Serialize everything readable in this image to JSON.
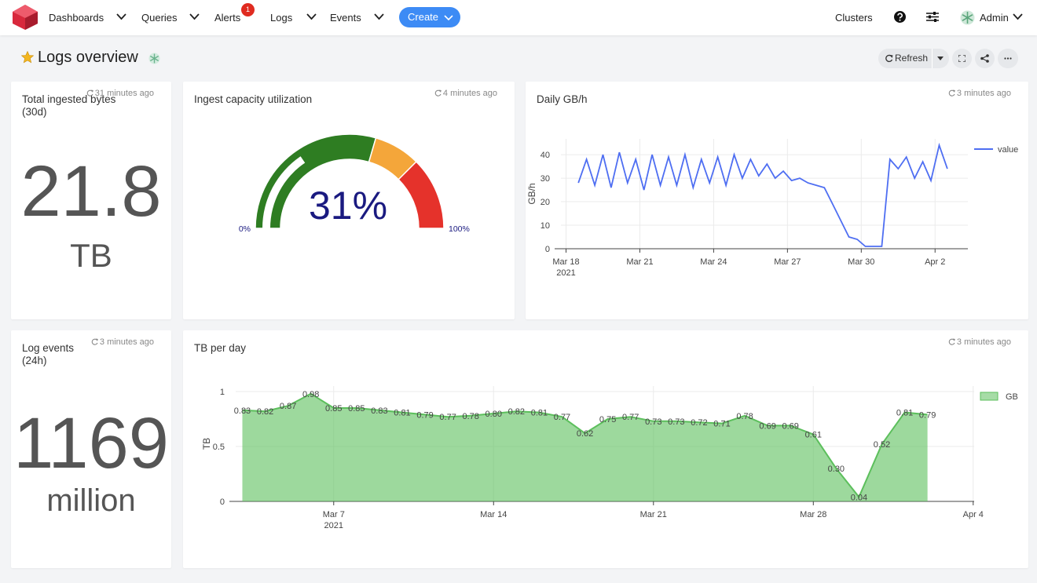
{
  "nav": {
    "items": [
      {
        "label": "Dashboards"
      },
      {
        "label": "Queries"
      },
      {
        "label": "Alerts",
        "badge": "1"
      },
      {
        "label": "Logs"
      },
      {
        "label": "Events"
      }
    ],
    "create": "Create",
    "clusters": "Clusters",
    "user": "Admin"
  },
  "header": {
    "title": "Logs overview",
    "refresh": "Refresh"
  },
  "stats": [
    {
      "title": "Total ingested bytes (30d)",
      "updated": "31 minutes ago",
      "value": "21.8",
      "unit": "TB"
    },
    {
      "title": "Log events (24h)",
      "updated": "3 minutes ago",
      "value": "1169",
      "unit": "million"
    }
  ],
  "chart_data": [
    {
      "type": "gauge",
      "title": "Ingest capacity utilization",
      "updated": "4 minutes ago",
      "values": [
        31
      ],
      "value_labels": [
        "31%"
      ],
      "color": "#2e7d22",
      "ylim": [
        0,
        100
      ],
      "yticks": [
        {
          "value": 0,
          "label": "0%"
        },
        {
          "value": 100,
          "label": "100%"
        }
      ],
      "bands": [
        {
          "to": 59,
          "color": "#2e7d22"
        },
        {
          "to": 75,
          "color": "#f4a63a"
        },
        {
          "to": 100,
          "color": "#e5322b"
        }
      ]
    },
    {
      "type": "line",
      "title": "Daily GB/h",
      "updated": "3 minutes ago",
      "y_label": "GB/h",
      "x": [
        "2021-03-18T12:00",
        "2021-03-18T20:00",
        "2021-03-19T04:00",
        "2021-03-19T12:00",
        "2021-03-19T20:00",
        "2021-03-20T04:00",
        "2021-03-20T12:00",
        "2021-03-20T20:00",
        "2021-03-21T04:00",
        "2021-03-21T12:00",
        "2021-03-21T20:00",
        "2021-03-22T04:00",
        "2021-03-22T12:00",
        "2021-03-22T20:00",
        "2021-03-23T04:00",
        "2021-03-23T12:00",
        "2021-03-23T20:00",
        "2021-03-24T04:00",
        "2021-03-24T12:00",
        "2021-03-24T20:00",
        "2021-03-25T04:00",
        "2021-03-25T12:00",
        "2021-03-25T20:00",
        "2021-03-26T04:00",
        "2021-03-26T12:00",
        "2021-03-26T20:00",
        "2021-03-27T04:00",
        "2021-03-27T12:00",
        "2021-03-27T20:00",
        "2021-03-28T04:00",
        "2021-03-28T12:00",
        "2021-03-28T20:00",
        "2021-03-29T04:00",
        "2021-03-29T12:00",
        "2021-03-29T20:00",
        "2021-03-30T04:00",
        "2021-03-30T12:00",
        "2021-03-30T20:00",
        "2021-03-31T04:00",
        "2021-03-31T12:00",
        "2021-03-31T20:00",
        "2021-04-01T04:00",
        "2021-04-01T12:00",
        "2021-04-01T20:00",
        "2021-04-02T04:00",
        "2021-04-02T12:00"
      ],
      "series": [
        {
          "name": "value",
          "color": "#4e6ef2",
          "values": [
            28,
            38,
            27,
            40,
            26,
            41,
            28,
            38,
            25,
            40,
            27,
            39,
            27,
            40,
            26,
            38,
            28,
            39,
            27,
            40,
            30,
            38,
            31,
            36,
            30,
            33,
            29,
            30,
            28,
            27,
            26,
            19,
            12,
            5,
            4,
            1,
            1,
            1,
            38,
            34,
            39,
            30,
            37,
            29,
            44,
            34
          ]
        }
      ],
      "xlim": [
        "2021-03-17T19:00",
        "2021-04-03T08:00"
      ],
      "xticks": [
        {
          "value": "2021-03-18",
          "label": "Mar 18\n2021"
        },
        {
          "value": "2021-03-21",
          "label": "Mar 21"
        },
        {
          "value": "2021-03-24",
          "label": "Mar 24"
        },
        {
          "value": "2021-03-27",
          "label": "Mar 27"
        },
        {
          "value": "2021-03-30",
          "label": "Mar 30"
        },
        {
          "value": "2021-04-02",
          "label": "Apr 2"
        }
      ],
      "ylim": [
        0,
        46.7
      ],
      "yticks": [
        0,
        10,
        20,
        30,
        40
      ],
      "grid": true,
      "legend": "right"
    },
    {
      "type": "area",
      "title": "TB per day",
      "updated": "3 minutes ago",
      "y_label": "TB",
      "x": [
        "2021-03-03",
        "2021-03-04",
        "2021-03-05",
        "2021-03-06",
        "2021-03-07",
        "2021-03-08",
        "2021-03-09",
        "2021-03-10",
        "2021-03-11",
        "2021-03-12",
        "2021-03-13",
        "2021-03-14",
        "2021-03-15",
        "2021-03-16",
        "2021-03-17",
        "2021-03-18",
        "2021-03-19",
        "2021-03-20",
        "2021-03-21",
        "2021-03-22",
        "2021-03-23",
        "2021-03-24",
        "2021-03-25",
        "2021-03-26",
        "2021-03-27",
        "2021-03-28",
        "2021-03-29",
        "2021-03-30",
        "2021-03-31",
        "2021-04-01",
        "2021-04-02"
      ],
      "series": [
        {
          "name": "GB",
          "color": "#5cbf5c",
          "values": [
            0.83,
            0.82,
            0.87,
            0.98,
            0.85,
            0.85,
            0.83,
            0.81,
            0.79,
            0.77,
            0.78,
            0.8,
            0.82,
            0.81,
            0.77,
            0.62,
            0.75,
            0.77,
            0.73,
            0.73,
            0.72,
            0.71,
            0.78,
            0.69,
            0.69,
            0.61,
            0.3,
            0.04,
            0.52,
            0.81,
            0.79
          ],
          "value_labels": [
            "0.83",
            "0.82",
            "0.87",
            "0.98",
            "0.85",
            "0.85",
            "0.83",
            "0.81",
            "0.79",
            "0.77",
            "0.78",
            "0.80",
            "0.82",
            "0.81",
            "0.77",
            "0.62",
            "0.75",
            "0.77",
            "0.73",
            "0.73",
            "0.72",
            "0.71",
            "0.78",
            "0.69",
            "0.69",
            "0.61",
            "0.30",
            "0.04",
            "0.52",
            "0.81",
            "0.79"
          ]
        }
      ],
      "xlim": [
        "2021-03-02T17:00",
        "2021-04-04T01:00"
      ],
      "xticks": [
        {
          "value": "2021-03-07",
          "label": "Mar 7\n2021"
        },
        {
          "value": "2021-03-14",
          "label": "Mar 14"
        },
        {
          "value": "2021-03-21",
          "label": "Mar 21"
        },
        {
          "value": "2021-03-28",
          "label": "Mar 28"
        },
        {
          "value": "2021-04-04",
          "label": "Apr 4"
        }
      ],
      "ylim": [
        0,
        1.05
      ],
      "yticks": [
        0,
        0.5,
        1
      ],
      "grid": true,
      "legend": "right"
    }
  ]
}
